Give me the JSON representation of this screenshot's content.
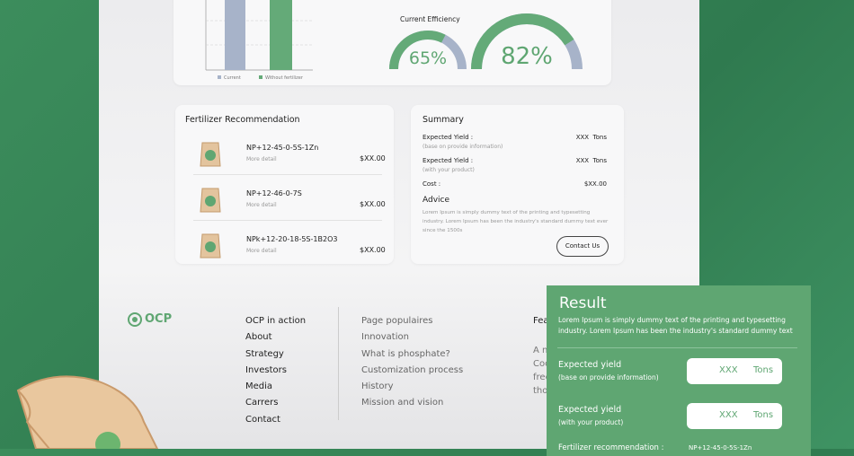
{
  "chart": {
    "legend": [
      "Current",
      "Without fertilizer"
    ],
    "gauges": [
      {
        "label": "Current Efficiency",
        "value": 65,
        "value_label": "65%"
      },
      {
        "value": 82,
        "value_label": "82%"
      }
    ]
  },
  "recommendation": {
    "title": "Fertilizer Recommendation",
    "items": [
      {
        "name": "NP+12-45-0-5S-1Zn",
        "detail": "More detail",
        "price": "$XX.00"
      },
      {
        "name": "NP+12-46-0-7S",
        "detail": "More detail",
        "price": "$XX.00"
      },
      {
        "name": "NPk+12-20-18-5S-1B2O3",
        "detail": "More detail",
        "price": "$XX.00"
      }
    ]
  },
  "summary": {
    "title": "Summary",
    "rows": [
      {
        "label": "Expected Yield :",
        "note": "(base on provide information)",
        "value": "XXX  Tons"
      },
      {
        "label": "Expected Yield :",
        "note": "(with your product)",
        "value": "XXX  Tons"
      },
      {
        "label": "Cost :",
        "value": "$XX.00"
      }
    ],
    "advice_title": "Advice",
    "advice_text": "Lorem Ipsum is simply dummy text of the printing and typesetting industry. Lorem Ipsum has been the industry's standard dummy text ever since the 1500s",
    "button": "Contact Us"
  },
  "footer": {
    "logo": "OCP",
    "col1": [
      "OCP in action",
      "About",
      "Strategy",
      "Investors",
      "Media",
      "Carrers",
      "Contact"
    ],
    "col2": [
      "Page populaires",
      "Innovation",
      "What is phosphate?",
      "Customization process",
      "History",
      "Mission and vision"
    ],
    "col3_title": "Fea",
    "col3": [
      "A n",
      "Coo",
      "free",
      "tho"
    ]
  },
  "result": {
    "title": "Result",
    "text": "Lorem Ipsum is simply dummy text of the printing and typesetting industry. Lorem Ipsum has been the industry's standard dummy text",
    "rows": [
      {
        "label": "Expected yield",
        "note": "(base on provide information)",
        "value": "XXX",
        "unit": "Tons"
      },
      {
        "label": "Expected yield",
        "note": "(with your product)",
        "value": "XXX",
        "unit": "Tons"
      }
    ],
    "last_label": "Fertilizer recommendation :",
    "last_value": "NP+12-45-0-5S-1Zn"
  }
}
